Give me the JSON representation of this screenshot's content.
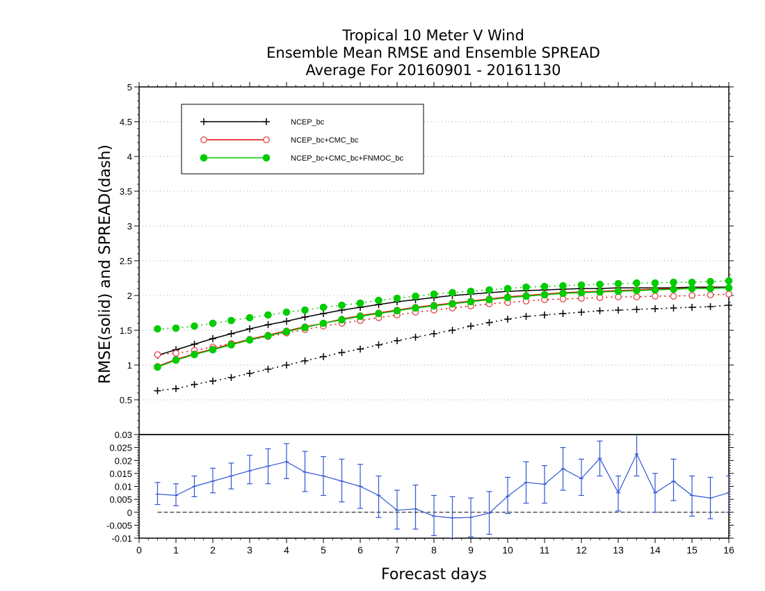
{
  "chart_data": [
    {
      "type": "line",
      "title": [
        "Tropical 10 Meter V Wind",
        "Ensemble Mean RMSE and Ensemble SPREAD",
        "Average For 20160901 - 20161130"
      ],
      "ylabel": "RMSE(solid) and SPREAD(dash)",
      "xlabel": "Forecast days",
      "xlim": [
        0,
        16
      ],
      "ylim": [
        0,
        5
      ],
      "xticks": [
        "0",
        "1",
        "2",
        "3",
        "4",
        "5",
        "6",
        "7",
        "8",
        "9",
        "10",
        "11",
        "12",
        "13",
        "14",
        "15",
        "16"
      ],
      "yticks": [
        {
          "v": 0.5,
          "label": "0.5"
        },
        {
          "v": 1,
          "label": "1"
        },
        {
          "v": 1.5,
          "label": "1.5"
        },
        {
          "v": 2,
          "label": "2"
        },
        {
          "v": 2.5,
          "label": "2.5"
        },
        {
          "v": 3,
          "label": "3"
        },
        {
          "v": 3.5,
          "label": "3.5"
        },
        {
          "v": 4,
          "label": "4"
        },
        {
          "v": 4.5,
          "label": "4.5"
        },
        {
          "v": 5,
          "label": "5"
        }
      ],
      "grid": true,
      "legend_position": "top-left",
      "x": [
        0.5,
        1,
        1.5,
        2,
        2.5,
        3,
        3.5,
        4,
        4.5,
        5,
        5.5,
        6,
        6.5,
        7,
        7.5,
        8,
        8.5,
        9,
        9.5,
        10,
        10.5,
        11,
        11.5,
        12,
        12.5,
        13,
        13.5,
        14,
        14.5,
        15,
        15.5,
        16
      ],
      "series": [
        {
          "name": "NCEP_bc",
          "color": "#000000",
          "marker": "plus",
          "rmse": [
            1.14,
            1.22,
            1.3,
            1.38,
            1.45,
            1.52,
            1.58,
            1.63,
            1.69,
            1.74,
            1.79,
            1.83,
            1.87,
            1.91,
            1.94,
            1.97,
            2.0,
            2.02,
            2.04,
            2.06,
            2.07,
            2.08,
            2.09,
            2.1,
            2.1,
            2.11,
            2.11,
            2.11,
            2.11,
            2.12,
            2.12,
            2.12
          ],
          "spread": [
            0.63,
            0.66,
            0.72,
            0.77,
            0.82,
            0.88,
            0.94,
            1.0,
            1.06,
            1.12,
            1.18,
            1.23,
            1.29,
            1.35,
            1.4,
            1.45,
            1.5,
            1.56,
            1.61,
            1.66,
            1.7,
            1.72,
            1.74,
            1.76,
            1.78,
            1.79,
            1.8,
            1.81,
            1.82,
            1.83,
            1.84,
            1.86
          ]
        },
        {
          "name": "NCEP_bc+CMC_bc",
          "color": "#e60000",
          "marker": "open-circle",
          "rmse": [
            0.98,
            1.08,
            1.16,
            1.23,
            1.3,
            1.37,
            1.43,
            1.49,
            1.55,
            1.6,
            1.66,
            1.71,
            1.75,
            1.79,
            1.83,
            1.86,
            1.89,
            1.92,
            1.95,
            1.98,
            2.0,
            2.02,
            2.04,
            2.05,
            2.06,
            2.07,
            2.08,
            2.09,
            2.1,
            2.1,
            2.11,
            2.11
          ],
          "spread": [
            1.15,
            1.17,
            1.21,
            1.26,
            1.31,
            1.36,
            1.41,
            1.46,
            1.51,
            1.56,
            1.6,
            1.64,
            1.68,
            1.72,
            1.76,
            1.79,
            1.82,
            1.85,
            1.88,
            1.9,
            1.92,
            1.94,
            1.95,
            1.96,
            1.97,
            1.98,
            1.98,
            1.99,
            1.99,
            2.0,
            2.01,
            2.02
          ]
        },
        {
          "name": "NCEP_bc+CMC_bc+FNMOC_bc",
          "color": "#00cc00",
          "marker": "filled-circle",
          "rmse": [
            0.97,
            1.07,
            1.15,
            1.22,
            1.29,
            1.36,
            1.42,
            1.48,
            1.54,
            1.6,
            1.65,
            1.7,
            1.74,
            1.78,
            1.82,
            1.85,
            1.88,
            1.91,
            1.94,
            1.97,
            1.99,
            2.01,
            2.03,
            2.04,
            2.05,
            2.06,
            2.07,
            2.08,
            2.09,
            2.1,
            2.1,
            2.11
          ],
          "spread": [
            1.52,
            1.53,
            1.56,
            1.6,
            1.64,
            1.68,
            1.72,
            1.76,
            1.79,
            1.83,
            1.86,
            1.89,
            1.93,
            1.96,
            1.99,
            2.02,
            2.04,
            2.06,
            2.08,
            2.1,
            2.12,
            2.13,
            2.14,
            2.15,
            2.16,
            2.17,
            2.18,
            2.18,
            2.19,
            2.19,
            2.2,
            2.21
          ]
        }
      ]
    },
    {
      "type": "line",
      "xlim": [
        0,
        16
      ],
      "ylim": [
        -0.01,
        0.03
      ],
      "yticks": [
        {
          "v": -0.01,
          "label": "-0.01"
        },
        {
          "v": -0.005,
          "label": "-0.005"
        },
        {
          "v": 0,
          "label": "0"
        },
        {
          "v": 0.005,
          "label": "0.005"
        },
        {
          "v": 0.01,
          "label": "0.01"
        },
        {
          "v": 0.015,
          "label": "0.015"
        },
        {
          "v": 0.02,
          "label": "0.02"
        },
        {
          "v": 0.025,
          "label": "0.025"
        },
        {
          "v": 0.03,
          "label": "0.03"
        }
      ],
      "color": "#2f55d4",
      "x": [
        0.5,
        1,
        1.5,
        2,
        2.5,
        3,
        3.5,
        4,
        4.5,
        5,
        5.5,
        6,
        6.5,
        7,
        7.5,
        8,
        8.5,
        9,
        9.5,
        10,
        10.5,
        11,
        11.5,
        12,
        12.5,
        13,
        13.5,
        14,
        14.5,
        15,
        15.5,
        16
      ],
      "values": [
        0.007,
        0.0065,
        0.01,
        0.012,
        0.014,
        0.016,
        0.0178,
        0.0195,
        0.0155,
        0.014,
        0.012,
        0.01,
        0.0065,
        0.0008,
        0.0013,
        -0.0015,
        -0.0022,
        -0.002,
        -0.0003,
        0.0062,
        0.0115,
        0.0108,
        0.0168,
        0.013,
        0.0208,
        0.0075,
        0.0225,
        0.0075,
        0.012,
        0.0065,
        0.0055,
        0.0075
      ],
      "err_low": [
        0.003,
        0.0025,
        0.006,
        0.0075,
        0.009,
        0.011,
        0.011,
        0.013,
        0.008,
        0.0065,
        0.004,
        0.0015,
        -0.002,
        -0.0065,
        -0.0065,
        -0.009,
        -0.01,
        -0.0095,
        -0.0085,
        -0.0005,
        0.0035,
        0.0035,
        0.0085,
        0.0065,
        0.014,
        0.0005,
        0.014,
        0.0,
        0.0045,
        -0.0015,
        -0.0025,
        0.0
      ],
      "err_high": [
        0.0115,
        0.011,
        0.014,
        0.017,
        0.019,
        0.022,
        0.0245,
        0.0265,
        0.0235,
        0.0215,
        0.0205,
        0.0185,
        0.014,
        0.0085,
        0.0105,
        0.0065,
        0.006,
        0.0055,
        0.008,
        0.0135,
        0.0195,
        0.018,
        0.025,
        0.0205,
        0.0275,
        0.014,
        0.031,
        0.015,
        0.0205,
        0.014,
        0.0135,
        0.014
      ]
    }
  ]
}
